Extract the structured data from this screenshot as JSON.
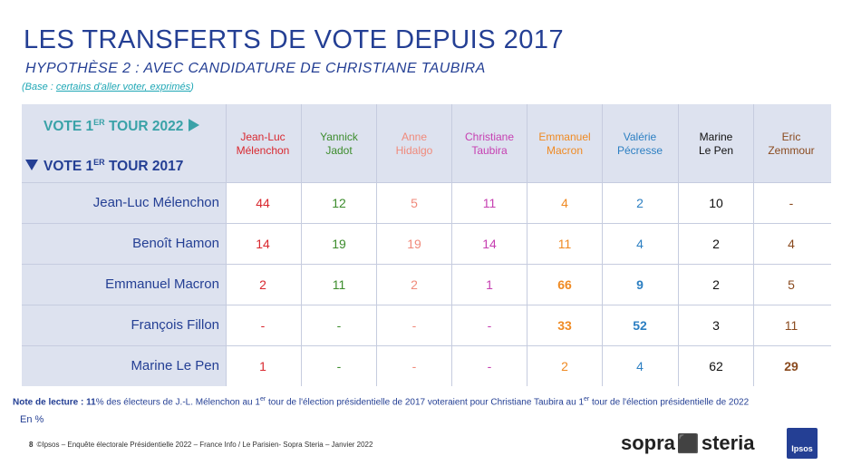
{
  "title": "LES TRANSFERTS DE VOTE DEPUIS 2017",
  "subtitle": "HYPOTHÈSE 2 : AVEC CANDIDATURE DE CHRISTIANE TAUBIRA",
  "base": {
    "prefix": "(Base : ",
    "link": "certains d'aller voter, exprimés",
    "suffix": ")"
  },
  "header": {
    "vote2022": {
      "main": "VOTE 1",
      "sup": "ER",
      "rest": " TOUR 2022"
    },
    "vote2017": {
      "main": "VOTE 1",
      "sup": "ER",
      "rest": " TOUR 2017"
    },
    "arrow_right_icon": "triangle-right",
    "arrow_down_icon": "triangle-down"
  },
  "candidates": [
    {
      "line1": "Jean-Luc",
      "line2": "Mélenchon",
      "color": "#d9282f"
    },
    {
      "line1": "Yannick",
      "line2": "Jadot",
      "color": "#3c8c2c"
    },
    {
      "line1": "Anne",
      "line2": "Hidalgo",
      "color": "#f08a7b"
    },
    {
      "line1": "Christiane",
      "line2": "Taubira",
      "color": "#c63fb1"
    },
    {
      "line1": "Emmanuel",
      "line2": "Macron",
      "color": "#ef8a23"
    },
    {
      "line1": "Valérie",
      "line2": "Pécresse",
      "color": "#2c7fc2"
    },
    {
      "line1": "Marine",
      "line2": "Le Pen",
      "color": "#111111"
    },
    {
      "line1": "Eric",
      "line2": "Zemmour",
      "color": "#8a4a1e"
    }
  ],
  "rows": [
    {
      "label": "Jean-Luc Mélenchon",
      "values": [
        "44",
        "12",
        "5",
        "11",
        "4",
        "2",
        "10",
        "-"
      ]
    },
    {
      "label": "Benoît Hamon",
      "values": [
        "14",
        "19",
        "19",
        "14",
        "11",
        "4",
        "2",
        "4"
      ]
    },
    {
      "label": "Emmanuel Macron",
      "values": [
        "2",
        "11",
        "2",
        "1",
        "66",
        "9",
        "2",
        "5"
      ]
    },
    {
      "label": "François Fillon",
      "values": [
        "-",
        "-",
        "-",
        "-",
        "33",
        "52",
        "3",
        "11"
      ]
    },
    {
      "label": "Marine Le Pen",
      "values": [
        "1",
        "-",
        "-",
        "-",
        "2",
        "4",
        "62",
        "29"
      ]
    }
  ],
  "bold_cells": [
    [
      2,
      4
    ],
    [
      2,
      5
    ],
    [
      3,
      4
    ],
    [
      3,
      5
    ],
    [
      4,
      7
    ]
  ],
  "note": {
    "label": "Note de lecture : ",
    "pct": "11",
    "t1": "% des électeurs de J.-L. Mélenchon au 1",
    "sup1": "er",
    "t2": " tour de l'élection présidentielle de 2017 voteraient pour Christiane Taubira au 1",
    "sup2": "er",
    "t3": " tour de l'élection présidentielle de 2022"
  },
  "unit": "En %",
  "footer": {
    "page": "8",
    "text": "©Ipsos – Enquête électorale Présidentielle 2022 – France Info / Le Parisien- Sopra Steria – Janvier 2022"
  },
  "logos": {
    "sopra": "sopra",
    "steria": "steria",
    "ipsos": "Ipsos"
  }
}
